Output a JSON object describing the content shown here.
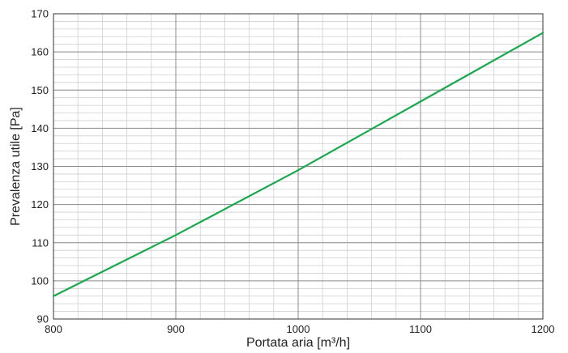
{
  "chart_data": {
    "type": "line",
    "title": "",
    "xlabel": "Portata aria [m³/h]",
    "ylabel": "Prevalenza utile [Pa]",
    "xlim": [
      800,
      1200
    ],
    "ylim": [
      90,
      170
    ],
    "x_ticks": [
      800,
      900,
      1000,
      1100,
      1200
    ],
    "y_ticks": [
      90,
      100,
      110,
      120,
      130,
      140,
      150,
      160,
      170
    ],
    "grid": true,
    "minor_grid": {
      "x_step": 20,
      "y_step": 2
    },
    "legend": "none",
    "series": [
      {
        "color": "#1aa84e",
        "x": [
          800,
          850,
          900,
          950,
          1000,
          1050,
          1100,
          1150,
          1200
        ],
        "y": [
          96,
          104,
          112,
          120.5,
          129,
          138,
          147,
          156,
          165
        ]
      }
    ]
  }
}
